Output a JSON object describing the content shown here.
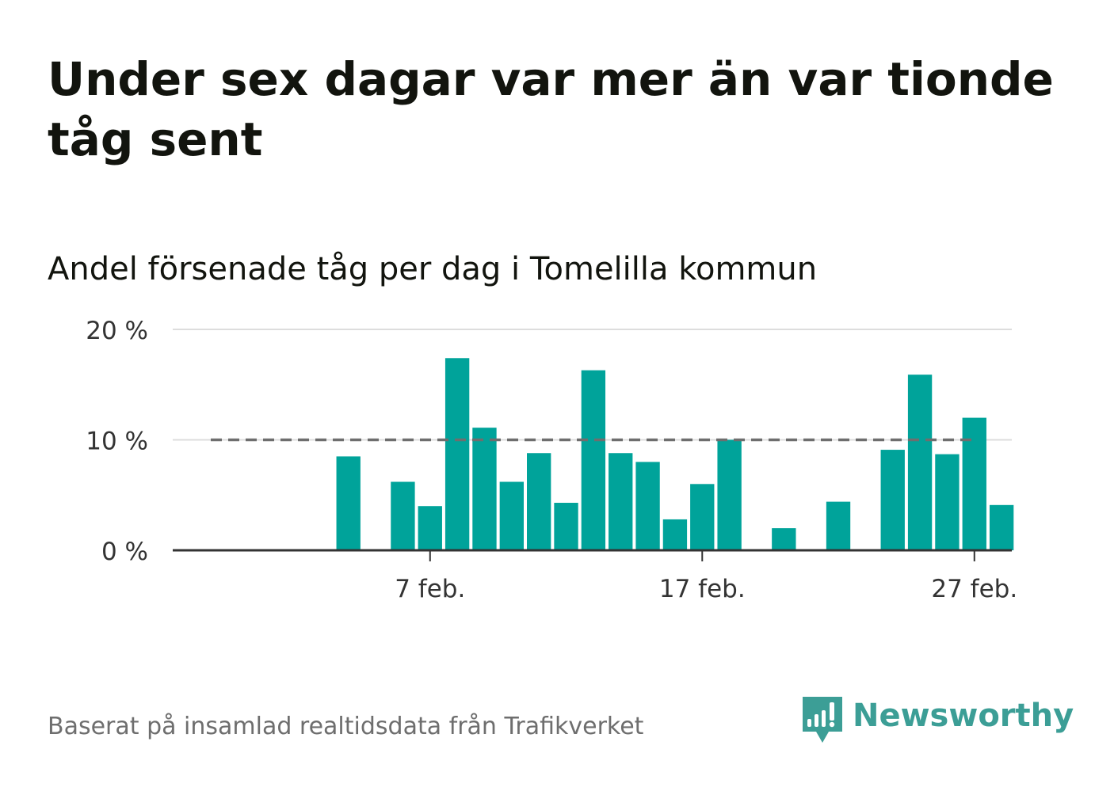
{
  "title": "Under sex dagar var mer än var tionde tåg sent",
  "subtitle": "Andel försenade tåg per dag i Tomelilla kommun",
  "source": "Baserat på insamlad realtidsdata från Trafikverket",
  "brand": {
    "name": "Newsworthy",
    "color": "#3c9e96",
    "icon": "bar-chart-speech-bubble-icon"
  },
  "colors": {
    "bar": "#00a39a",
    "threshold": "#6e6e6e",
    "grid": "#dddddd",
    "axis": "#333333"
  },
  "chart_data": {
    "type": "bar",
    "x_unit": "day of February",
    "x": [
      1,
      2,
      3,
      4,
      5,
      6,
      7,
      8,
      9,
      10,
      11,
      12,
      13,
      14,
      15,
      16,
      17,
      18,
      19,
      20,
      21,
      22,
      23,
      24,
      25,
      26,
      27,
      28
    ],
    "values": [
      null,
      null,
      null,
      8.5,
      null,
      6.2,
      4.0,
      17.4,
      11.1,
      6.2,
      8.8,
      4.3,
      16.3,
      8.8,
      8.0,
      2.8,
      6.0,
      10.0,
      null,
      2.0,
      null,
      4.4,
      null,
      9.1,
      15.9,
      8.7,
      12.0,
      4.1
    ],
    "threshold": 10,
    "threshold_style": "dashed",
    "xticks": [
      {
        "x": 7,
        "label": "7 feb."
      },
      {
        "x": 17,
        "label": "17 feb."
      },
      {
        "x": 27,
        "label": "27 feb."
      }
    ],
    "yticks": [
      {
        "value": 0,
        "label": "0 %"
      },
      {
        "value": 10,
        "label": "10 %"
      },
      {
        "value": 20,
        "label": "20 %"
      }
    ],
    "ylim": [
      0,
      20
    ],
    "xlabel": "",
    "ylabel": "",
    "grid": true
  }
}
